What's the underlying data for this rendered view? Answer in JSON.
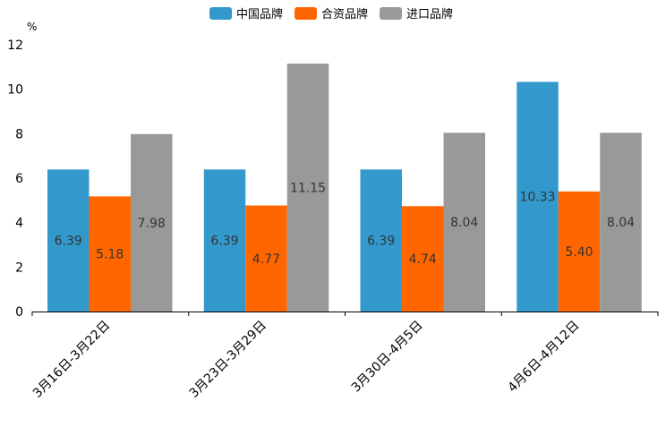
{
  "chart_data": {
    "type": "bar",
    "title": "",
    "xlabel": "",
    "ylabel": "%",
    "ylim": [
      0,
      12
    ],
    "yticks": [
      0,
      2,
      4,
      6,
      8,
      10,
      12
    ],
    "grid": false,
    "legend_position": "top-center",
    "categories": [
      "3月16日-3月22日",
      "3月23日-3月29日",
      "3月30日-4月5日",
      "4月6日-4月12日"
    ],
    "series": [
      {
        "name": "中国品牌",
        "color": "#3399cc",
        "values": [
          6.39,
          6.39,
          6.39,
          10.33
        ]
      },
      {
        "name": "合资品牌",
        "color": "#ff6600",
        "values": [
          5.18,
          4.77,
          4.74,
          5.4
        ]
      },
      {
        "name": "进口品牌",
        "color": "#999999",
        "values": [
          7.98,
          11.15,
          8.04,
          8.04
        ]
      }
    ]
  }
}
